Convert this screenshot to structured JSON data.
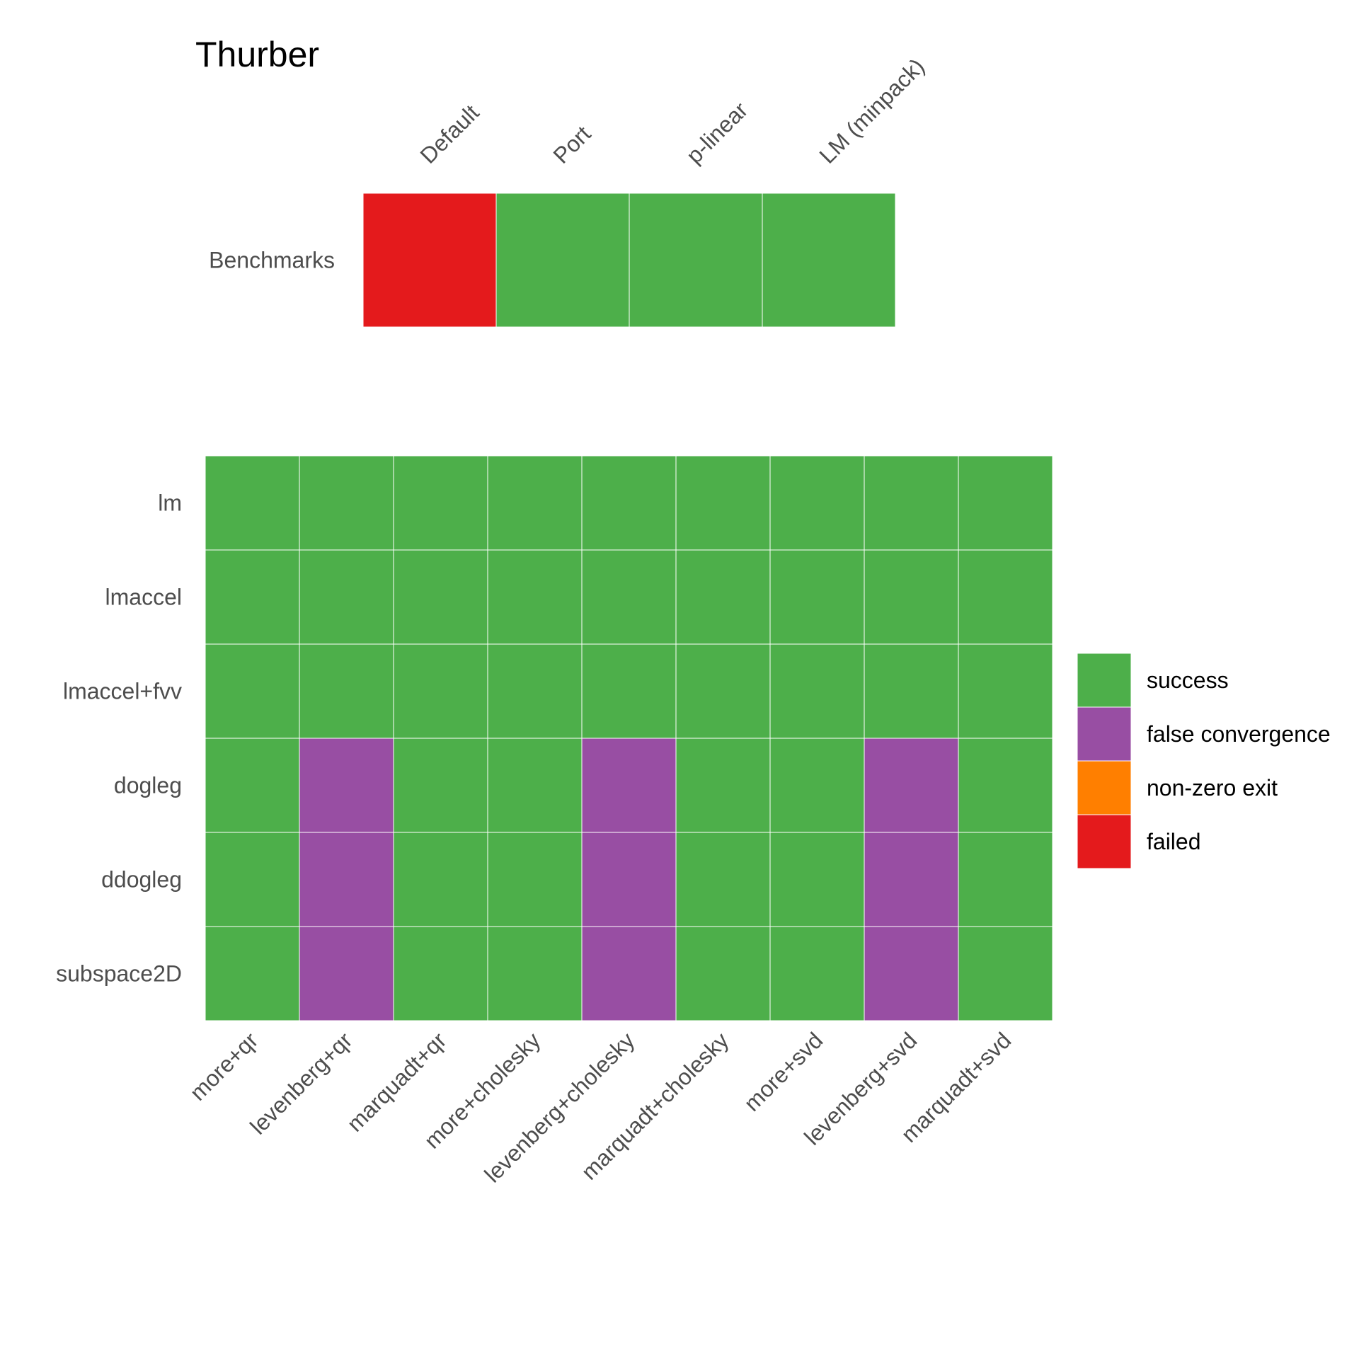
{
  "chart_data": [
    {
      "type": "heatmap",
      "panel": "benchmarks",
      "title": "Thurber",
      "categories": [
        "Default",
        "Port",
        "p-linear",
        "LM (minpack)"
      ],
      "rows": [
        "Benchmarks"
      ],
      "values": [
        [
          "failed",
          "success",
          "success",
          "success"
        ]
      ]
    },
    {
      "type": "heatmap",
      "panel": "solvers",
      "categories": [
        "more+qr",
        "levenberg+qr",
        "marquadt+qr",
        "more+cholesky",
        "levenberg+cholesky",
        "marquadt+cholesky",
        "more+svd",
        "levenberg+svd",
        "marquadt+svd"
      ],
      "rows": [
        "lm",
        "lmaccel",
        "lmaccel+fvv",
        "dogleg",
        "ddogleg",
        "subspace2D"
      ],
      "values": [
        [
          "success",
          "success",
          "success",
          "success",
          "success",
          "success",
          "success",
          "success",
          "success"
        ],
        [
          "success",
          "success",
          "success",
          "success",
          "success",
          "success",
          "success",
          "success",
          "success"
        ],
        [
          "success",
          "success",
          "success",
          "success",
          "success",
          "success",
          "success",
          "success",
          "success"
        ],
        [
          "success",
          "false convergence",
          "success",
          "success",
          "false convergence",
          "success",
          "success",
          "false convergence",
          "success"
        ],
        [
          "success",
          "false convergence",
          "success",
          "success",
          "false convergence",
          "success",
          "success",
          "false convergence",
          "success"
        ],
        [
          "success",
          "false convergence",
          "success",
          "success",
          "false convergence",
          "success",
          "success",
          "false convergence",
          "success"
        ]
      ]
    }
  ],
  "legend": {
    "placement": "right",
    "items": [
      {
        "label": "success",
        "color": "#4daf4a"
      },
      {
        "label": "false convergence",
        "color": "#984ea3"
      },
      {
        "label": "non-zero exit",
        "color": "#ff7f00"
      },
      {
        "label": "failed",
        "color": "#e41a1c"
      }
    ]
  }
}
